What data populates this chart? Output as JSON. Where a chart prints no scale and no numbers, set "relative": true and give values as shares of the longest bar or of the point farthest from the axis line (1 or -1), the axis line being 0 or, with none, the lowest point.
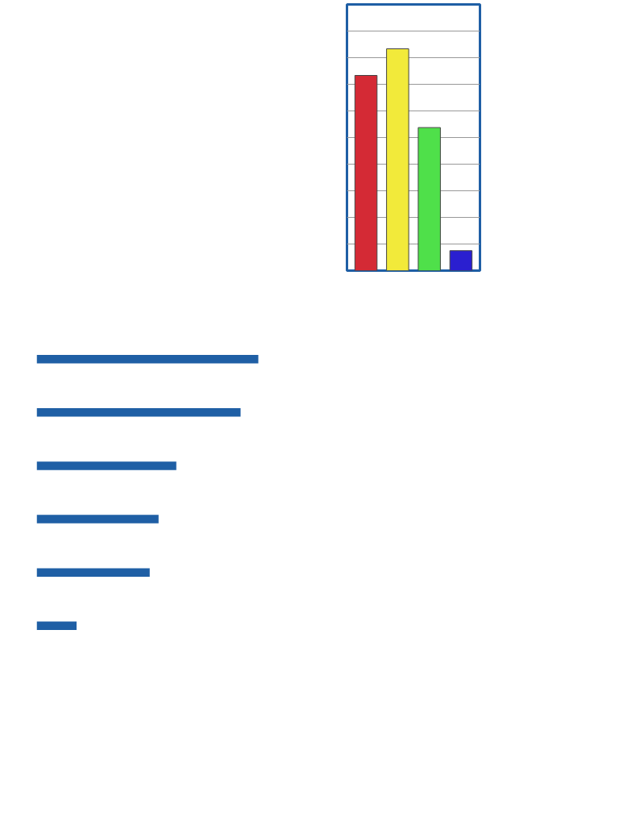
{
  "chart_data": [
    {
      "type": "bar",
      "relative": true,
      "categories": [
        null,
        null,
        null,
        null
      ],
      "values": [
        0.88,
        1,
        0.645,
        0.09
      ],
      "colors": [
        "#d42a35",
        "#f2ea3a",
        "#4fe04a",
        "#2a1fd0"
      ],
      "grid": "y"
    },
    {
      "type": "bar",
      "relative": true,
      "orientation": "horizontal",
      "categories": [
        null,
        null,
        null,
        null,
        null,
        null
      ],
      "color": "#1f5fa5",
      "values": [
        1,
        0.92,
        0.63,
        0.55,
        0.51,
        0.18
      ]
    }
  ]
}
